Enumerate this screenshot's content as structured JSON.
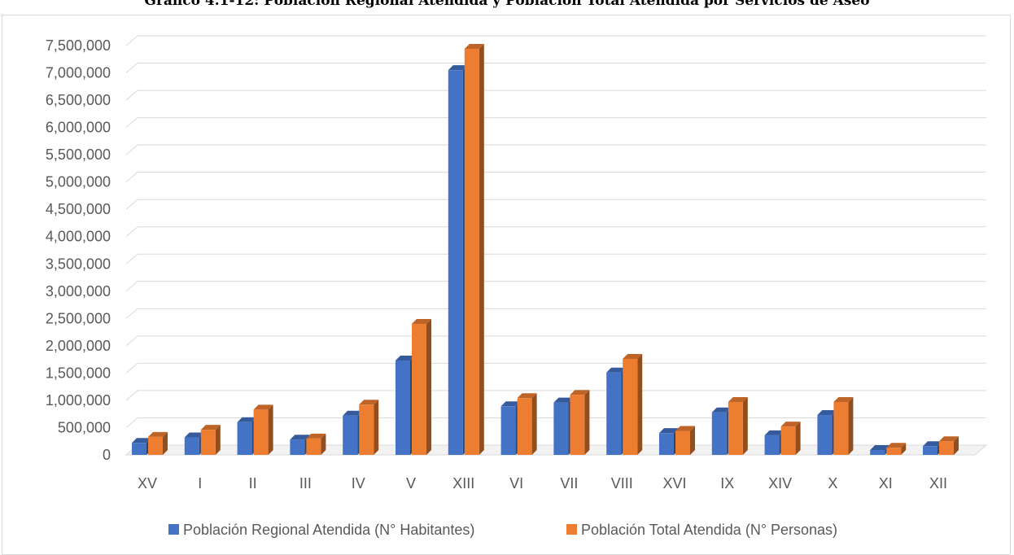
{
  "chart_data": {
    "type": "bar",
    "title": "Gráfico 4.1-12: Población Regional Atendida y Población Total Atendida por Servicios de Aseo",
    "categories": [
      "XV",
      "I",
      "II",
      "III",
      "IV",
      "V",
      "XIII",
      "VI",
      "VII",
      "VIII",
      "XVI",
      "IX",
      "XIV",
      "X",
      "XI",
      "XII"
    ],
    "series": [
      {
        "name": "Población Regional Atendida (N° Habitantes)",
        "color": "#4472c4",
        "values": [
          220000,
          320000,
          600000,
          280000,
          720000,
          1730000,
          7050000,
          890000,
          960000,
          1510000,
          400000,
          780000,
          360000,
          730000,
          90000,
          160000
        ]
      },
      {
        "name": "Población Total Atendida (N° Personas)",
        "color": "#ed7d31",
        "values": [
          330000,
          460000,
          830000,
          300000,
          920000,
          2400000,
          7440000,
          1040000,
          1100000,
          1760000,
          440000,
          970000,
          520000,
          970000,
          130000,
          250000
        ]
      }
    ],
    "ylim": [
      0,
      7500000
    ],
    "y_ticks": [
      "0",
      "500,000",
      "1,000,000",
      "1,500,000",
      "2,000,000",
      "2,500,000",
      "3,000,000",
      "3,500,000",
      "4,000,000",
      "4,500,000",
      "5,000,000",
      "5,500,000",
      "6,000,000",
      "6,500,000",
      "7,000,000",
      "7,500,000"
    ],
    "xlabel": "",
    "ylabel": "",
    "grid": true,
    "legend_position": "bottom",
    "style": "3d-clustered-column"
  }
}
